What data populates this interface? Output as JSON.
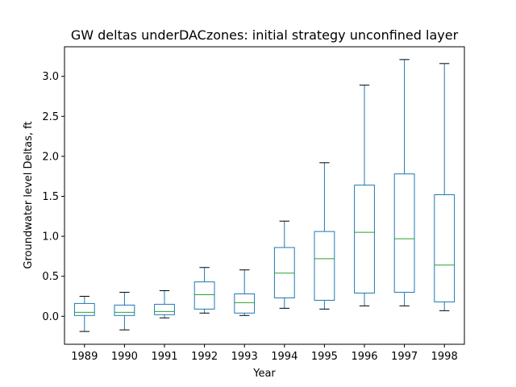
{
  "chart_data": {
    "type": "boxplot",
    "title": "GW deltas underDACzones: initial strategy unconfined layer",
    "xlabel": "Year",
    "ylabel": "Groundwater level Deltas, ft",
    "ylim": [
      -0.35,
      3.37
    ],
    "yticks": [
      "0.0",
      "0.5",
      "1.0",
      "1.5",
      "2.0",
      "2.5",
      "3.0"
    ],
    "grid": false,
    "colors": {
      "box": "#1f77b4",
      "median": "#2ca02c",
      "cap": "#000000",
      "axis": "#000000"
    },
    "categories": [
      "1989",
      "1990",
      "1991",
      "1992",
      "1993",
      "1994",
      "1995",
      "1996",
      "1997",
      "1998"
    ],
    "boxes": [
      {
        "whislo": -0.19,
        "q1": 0.01,
        "med": 0.05,
        "q3": 0.16,
        "whishi": 0.25
      },
      {
        "whislo": -0.17,
        "q1": 0.01,
        "med": 0.05,
        "q3": 0.14,
        "whishi": 0.3
      },
      {
        "whislo": -0.02,
        "q1": 0.02,
        "med": 0.06,
        "q3": 0.15,
        "whishi": 0.32
      },
      {
        "whislo": 0.04,
        "q1": 0.09,
        "med": 0.27,
        "q3": 0.43,
        "whishi": 0.61
      },
      {
        "whislo": 0.01,
        "q1": 0.04,
        "med": 0.17,
        "q3": 0.28,
        "whishi": 0.58
      },
      {
        "whislo": 0.1,
        "q1": 0.23,
        "med": 0.54,
        "q3": 0.86,
        "whishi": 1.19
      },
      {
        "whislo": 0.09,
        "q1": 0.2,
        "med": 0.72,
        "q3": 1.06,
        "whishi": 1.92
      },
      {
        "whislo": 0.13,
        "q1": 0.29,
        "med": 1.05,
        "q3": 1.64,
        "whishi": 2.89
      },
      {
        "whislo": 0.13,
        "q1": 0.3,
        "med": 0.97,
        "q3": 1.78,
        "whishi": 3.21
      },
      {
        "whislo": 0.07,
        "q1": 0.18,
        "med": 0.64,
        "q3": 1.52,
        "whishi": 3.16
      }
    ]
  }
}
